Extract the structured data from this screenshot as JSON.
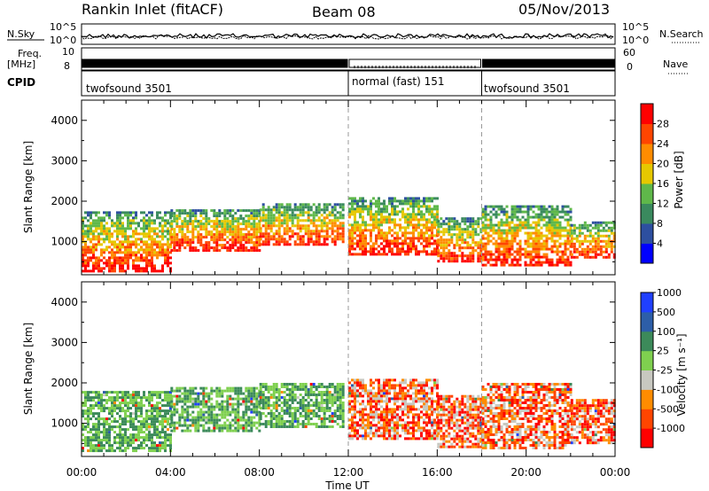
{
  "header": {
    "station": "Rankin Inlet (fitACF)",
    "beam": "Beam 08",
    "date": "05/Nov/2013"
  },
  "strip": {
    "left_sky": "N.Sky",
    "left_freq_top": "Freq.",
    "left_freq_unit": "[MHz]",
    "cpid_label": "CPID",
    "right_search": "N.Search",
    "right_nave": "Nave",
    "ticks_noise_left": [
      "10^5",
      "10^0"
    ],
    "ticks_noise_right": [
      "10^5",
      "10^0"
    ],
    "ticks_freq": [
      "10",
      "8"
    ],
    "ticks_nave": [
      "60",
      "0"
    ]
  },
  "cpid": [
    {
      "label": "twofsound 3501",
      "start": 0,
      "end": 12
    },
    {
      "label": "normal (fast) 151",
      "start": 12,
      "end": 18
    },
    {
      "label": "twofsound 3501",
      "start": 18,
      "end": 24
    }
  ],
  "colors": {
    "power": [
      "#0000ff",
      "#2d4fa0",
      "#3a8a5e",
      "#5fb84a",
      "#e6c800",
      "#ff8c00",
      "#ff4500",
      "#ff0000"
    ],
    "velocity": [
      "#ff0000",
      "#ff4500",
      "#ff8c00",
      "#c8c8c0",
      "#7fd04f",
      "#3c8a5a",
      "#2d5ea8",
      "#2040ff"
    ]
  },
  "chart_data": [
    {
      "type": "heatmap",
      "panel": "power",
      "xlabel": "",
      "ylabel": "Slant Range [km]",
      "xlim": [
        0,
        24
      ],
      "ylim": [
        180,
        4500
      ],
      "yticks": [
        "1000",
        "2000",
        "3000",
        "4000"
      ],
      "colorbar_label": "Power [dB]",
      "colorbar_ticks": [
        "4",
        "8",
        "12",
        "16",
        "20",
        "24",
        "28"
      ],
      "echo_bands": [
        {
          "start": 0.0,
          "end": 4.0,
          "low": 300,
          "high": 1750
        },
        {
          "start": 4.0,
          "end": 8.0,
          "low": 800,
          "high": 1800
        },
        {
          "start": 8.0,
          "end": 11.8,
          "low": 900,
          "high": 1950
        },
        {
          "start": 12.0,
          "end": 16.0,
          "low": 700,
          "high": 2100
        },
        {
          "start": 16.0,
          "end": 18.0,
          "low": 500,
          "high": 1600
        },
        {
          "start": 18.0,
          "end": 22.0,
          "low": 400,
          "high": 1900
        },
        {
          "start": 22.0,
          "end": 24.0,
          "low": 600,
          "high": 1500
        }
      ]
    },
    {
      "type": "heatmap",
      "panel": "velocity",
      "xlabel": "Time UT",
      "ylabel": "Slant Range [km]",
      "xlim": [
        0,
        24
      ],
      "ylim": [
        180,
        4500
      ],
      "xticks": [
        "00:00",
        "04:00",
        "08:00",
        "12:00",
        "16:00",
        "20:00",
        "00:00"
      ],
      "yticks": [
        "1000",
        "2000",
        "3000",
        "4000"
      ],
      "colorbar_label": "Velocity [m s⁻¹]",
      "colorbar_ticks": [
        "-1000",
        "-500",
        "-100",
        "-25",
        "25",
        "100",
        "500",
        "1000"
      ],
      "echo_bands": [
        {
          "start": 0.0,
          "end": 4.0,
          "low": 300,
          "high": 1800
        },
        {
          "start": 4.0,
          "end": 8.0,
          "low": 800,
          "high": 1900
        },
        {
          "start": 8.0,
          "end": 11.8,
          "low": 900,
          "high": 2000
        },
        {
          "start": 12.0,
          "end": 16.0,
          "low": 600,
          "high": 2100
        },
        {
          "start": 16.0,
          "end": 18.0,
          "low": 400,
          "high": 1700
        },
        {
          "start": 18.0,
          "end": 22.0,
          "low": 400,
          "high": 2000
        },
        {
          "start": 22.0,
          "end": 24.0,
          "low": 500,
          "high": 1600
        }
      ]
    }
  ]
}
